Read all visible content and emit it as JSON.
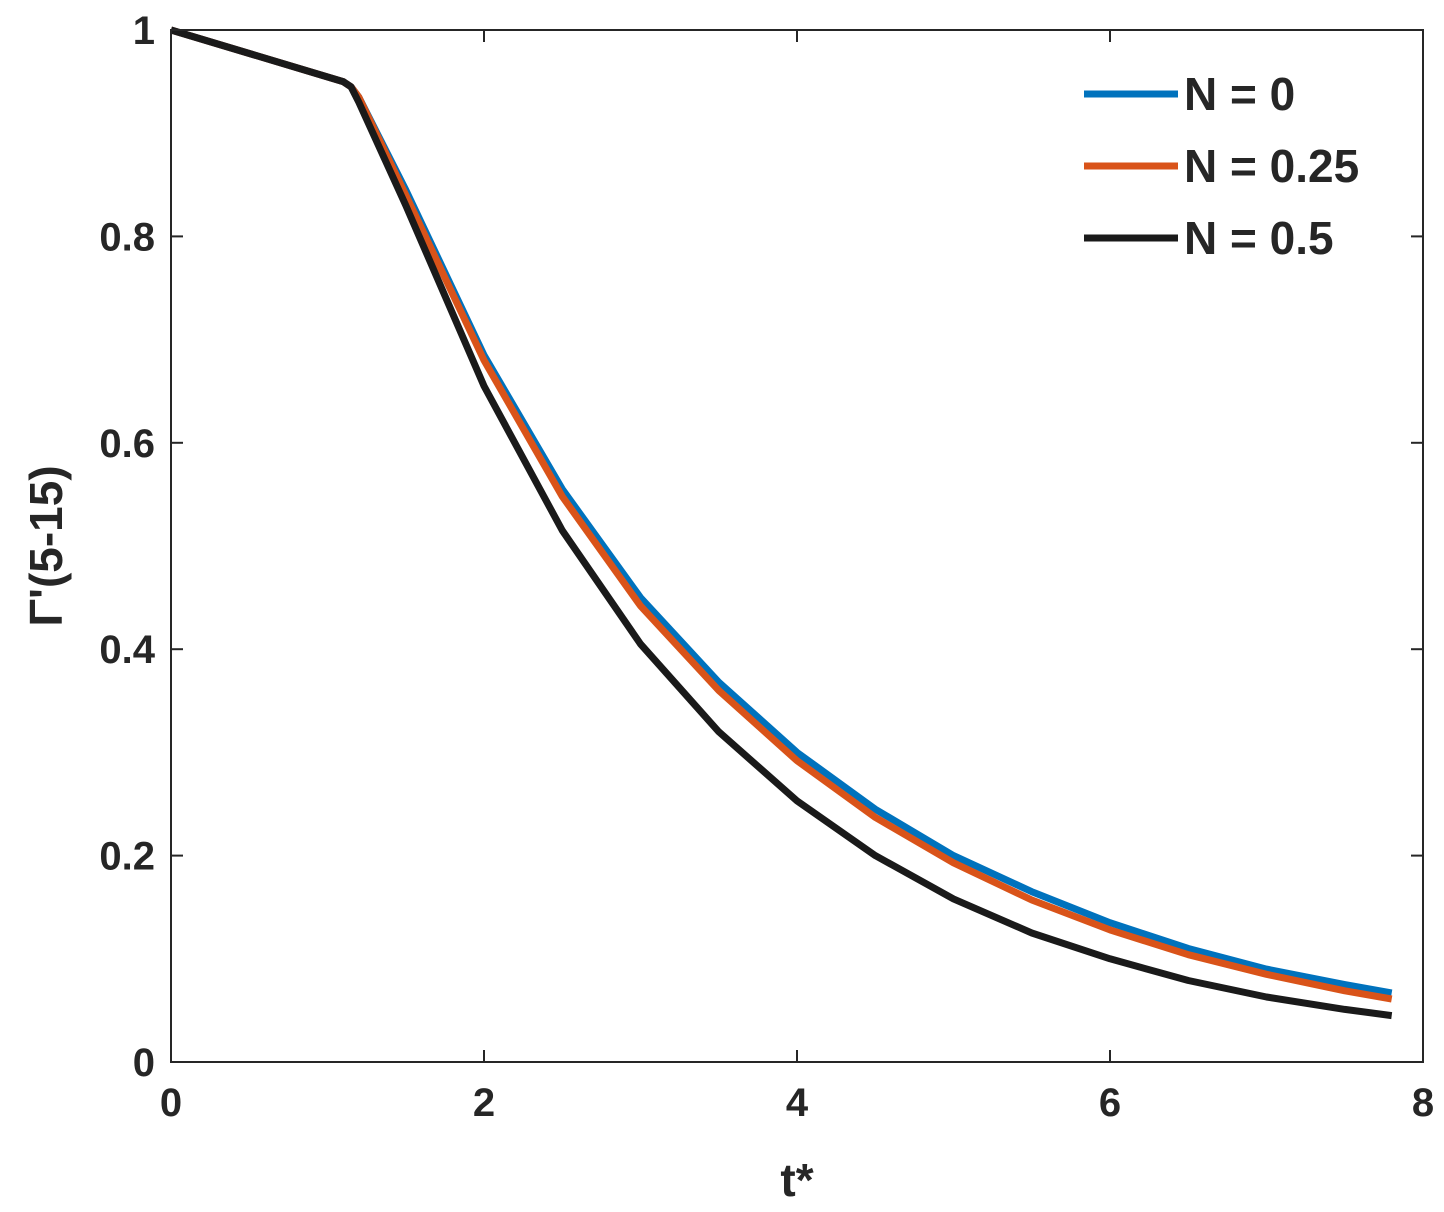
{
  "chart_data": {
    "type": "line",
    "xlabel": "t*",
    "ylabel": "Γ'(5-15)",
    "xlim": [
      0,
      8
    ],
    "ylim": [
      0,
      1
    ],
    "xticks": [
      0,
      2,
      4,
      6,
      8
    ],
    "yticks": [
      0,
      0.2,
      0.4,
      0.6,
      0.8,
      1
    ],
    "xtick_labels": [
      "0",
      "2",
      "4",
      "6",
      "8"
    ],
    "ytick_labels": [
      "0",
      "0.2",
      "0.4",
      "0.6",
      "0.8",
      "1"
    ],
    "grid": false,
    "box": true,
    "legend_position": "top-right",
    "series": [
      {
        "name": "N = 0",
        "color": "#0072BD",
        "x": [
          0,
          1.1,
          1.15,
          1.2,
          1.5,
          2,
          2.5,
          3,
          3.5,
          4,
          4.5,
          5,
          5.5,
          6,
          6.5,
          7,
          7.5,
          7.8
        ],
        "y": [
          1,
          0.95,
          0.945,
          0.935,
          0.845,
          0.685,
          0.555,
          0.45,
          0.368,
          0.3,
          0.245,
          0.2,
          0.165,
          0.135,
          0.11,
          0.09,
          0.075,
          0.067
        ]
      },
      {
        "name": "N = 0.25",
        "color": "#D95319",
        "x": [
          0,
          1.1,
          1.15,
          1.2,
          1.5,
          2,
          2.5,
          3,
          3.5,
          4,
          4.5,
          5,
          5.5,
          6,
          6.5,
          7,
          7.5,
          7.8
        ],
        "y": [
          1,
          0.95,
          0.945,
          0.935,
          0.84,
          0.68,
          0.548,
          0.442,
          0.36,
          0.292,
          0.237,
          0.193,
          0.157,
          0.128,
          0.104,
          0.085,
          0.069,
          0.061
        ]
      },
      {
        "name": "N = 0.5",
        "color": "#1A1A1A",
        "x": [
          0,
          1.1,
          1.15,
          1.2,
          1.5,
          2,
          2.5,
          3,
          3.5,
          4,
          4.5,
          5,
          5.5,
          6,
          6.5,
          7,
          7.5,
          7.8
        ],
        "y": [
          1,
          0.95,
          0.945,
          0.93,
          0.83,
          0.655,
          0.515,
          0.405,
          0.32,
          0.253,
          0.2,
          0.158,
          0.125,
          0.1,
          0.079,
          0.063,
          0.051,
          0.045
        ]
      }
    ]
  }
}
